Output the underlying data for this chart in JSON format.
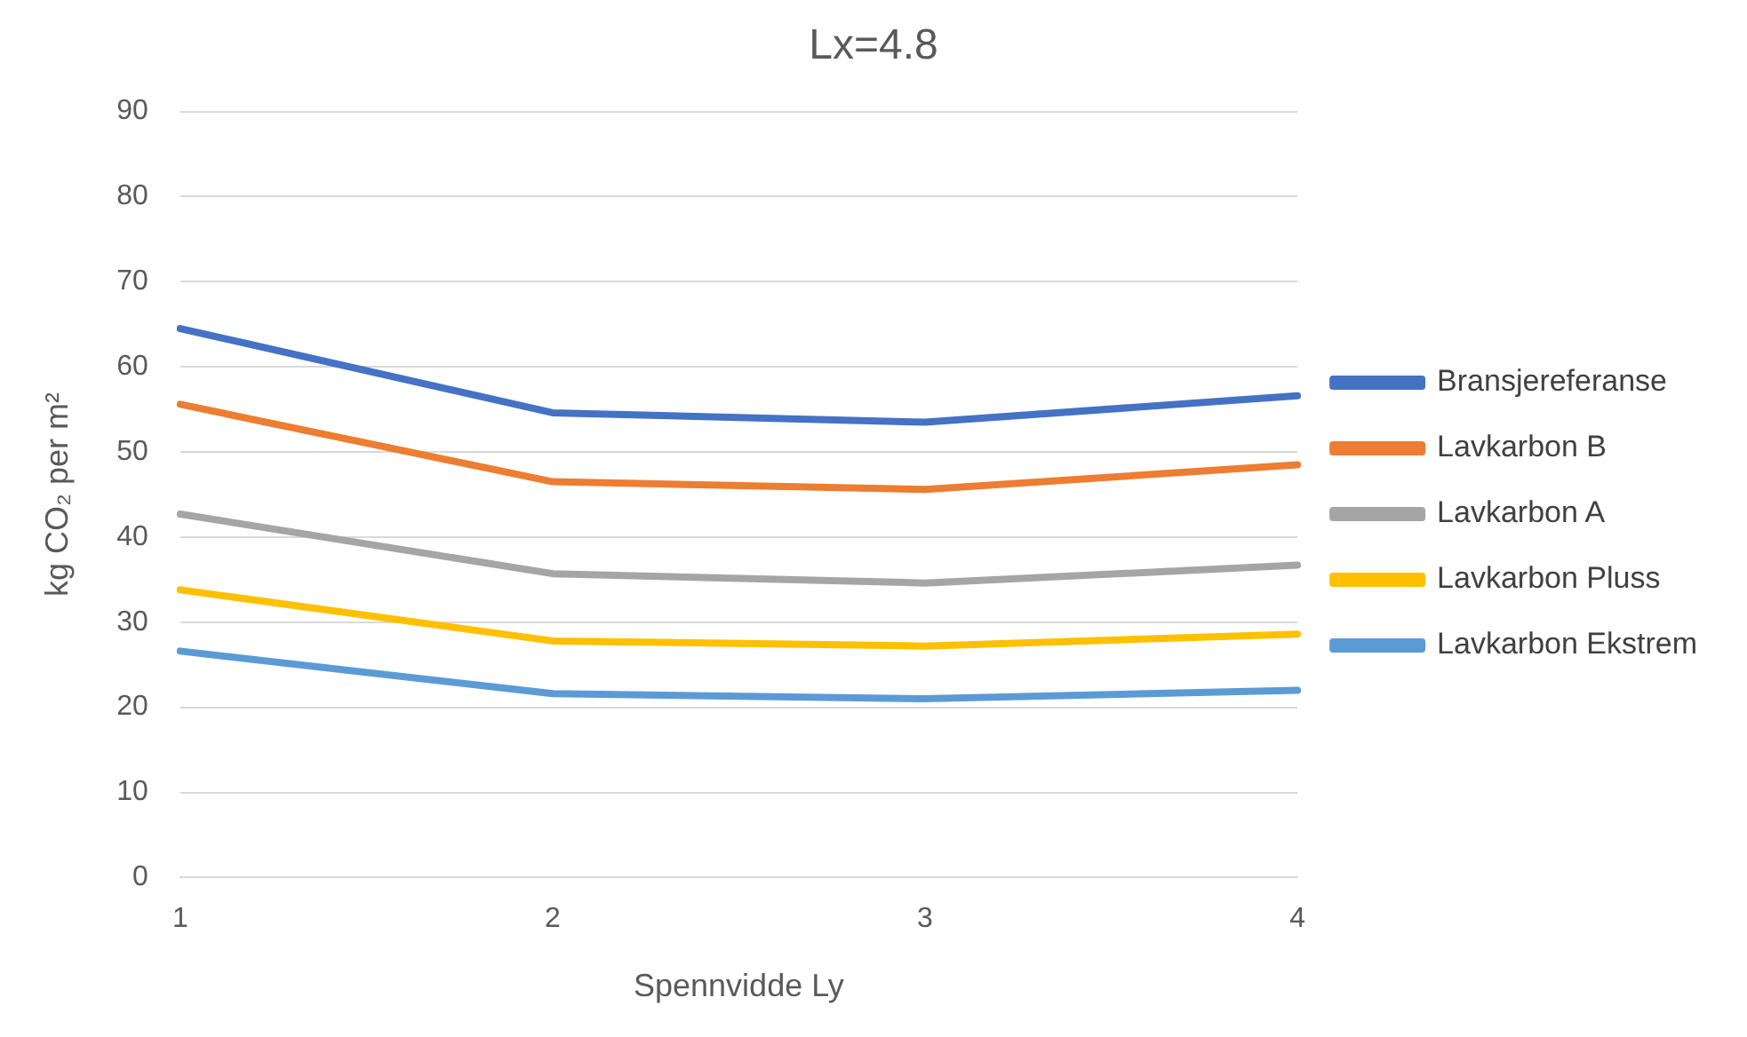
{
  "chart_data": {
    "type": "line",
    "title": "Lx=4.8",
    "xlabel": "Spennvidde Ly",
    "ylabel": "kg CO₂ per m²",
    "categories": [
      "1",
      "2",
      "3",
      "4"
    ],
    "series": [
      {
        "name": "Bransjereferanse",
        "color": "#4472c4",
        "values": [
          64.5,
          54.6,
          53.5,
          56.6
        ]
      },
      {
        "name": "Lavkarbon B",
        "color": "#ed7d31",
        "values": [
          55.6,
          46.5,
          45.6,
          48.5
        ]
      },
      {
        "name": "Lavkarbon A",
        "color": "#a5a5a5",
        "values": [
          42.7,
          35.7,
          34.6,
          36.7
        ]
      },
      {
        "name": "Lavkarbon Pluss",
        "color": "#ffc000",
        "values": [
          33.8,
          27.8,
          27.2,
          28.6
        ]
      },
      {
        "name": "Lavkarbon Ekstrem",
        "color": "#5b9bd5",
        "values": [
          26.6,
          21.6,
          21.0,
          22.0
        ]
      }
    ],
    "ylim": [
      0,
      90
    ],
    "yticks": [
      0,
      10,
      20,
      30,
      40,
      50,
      60,
      70,
      80,
      90
    ],
    "grid": "y",
    "legend": "right",
    "marker": "none",
    "line_style": "solid"
  }
}
